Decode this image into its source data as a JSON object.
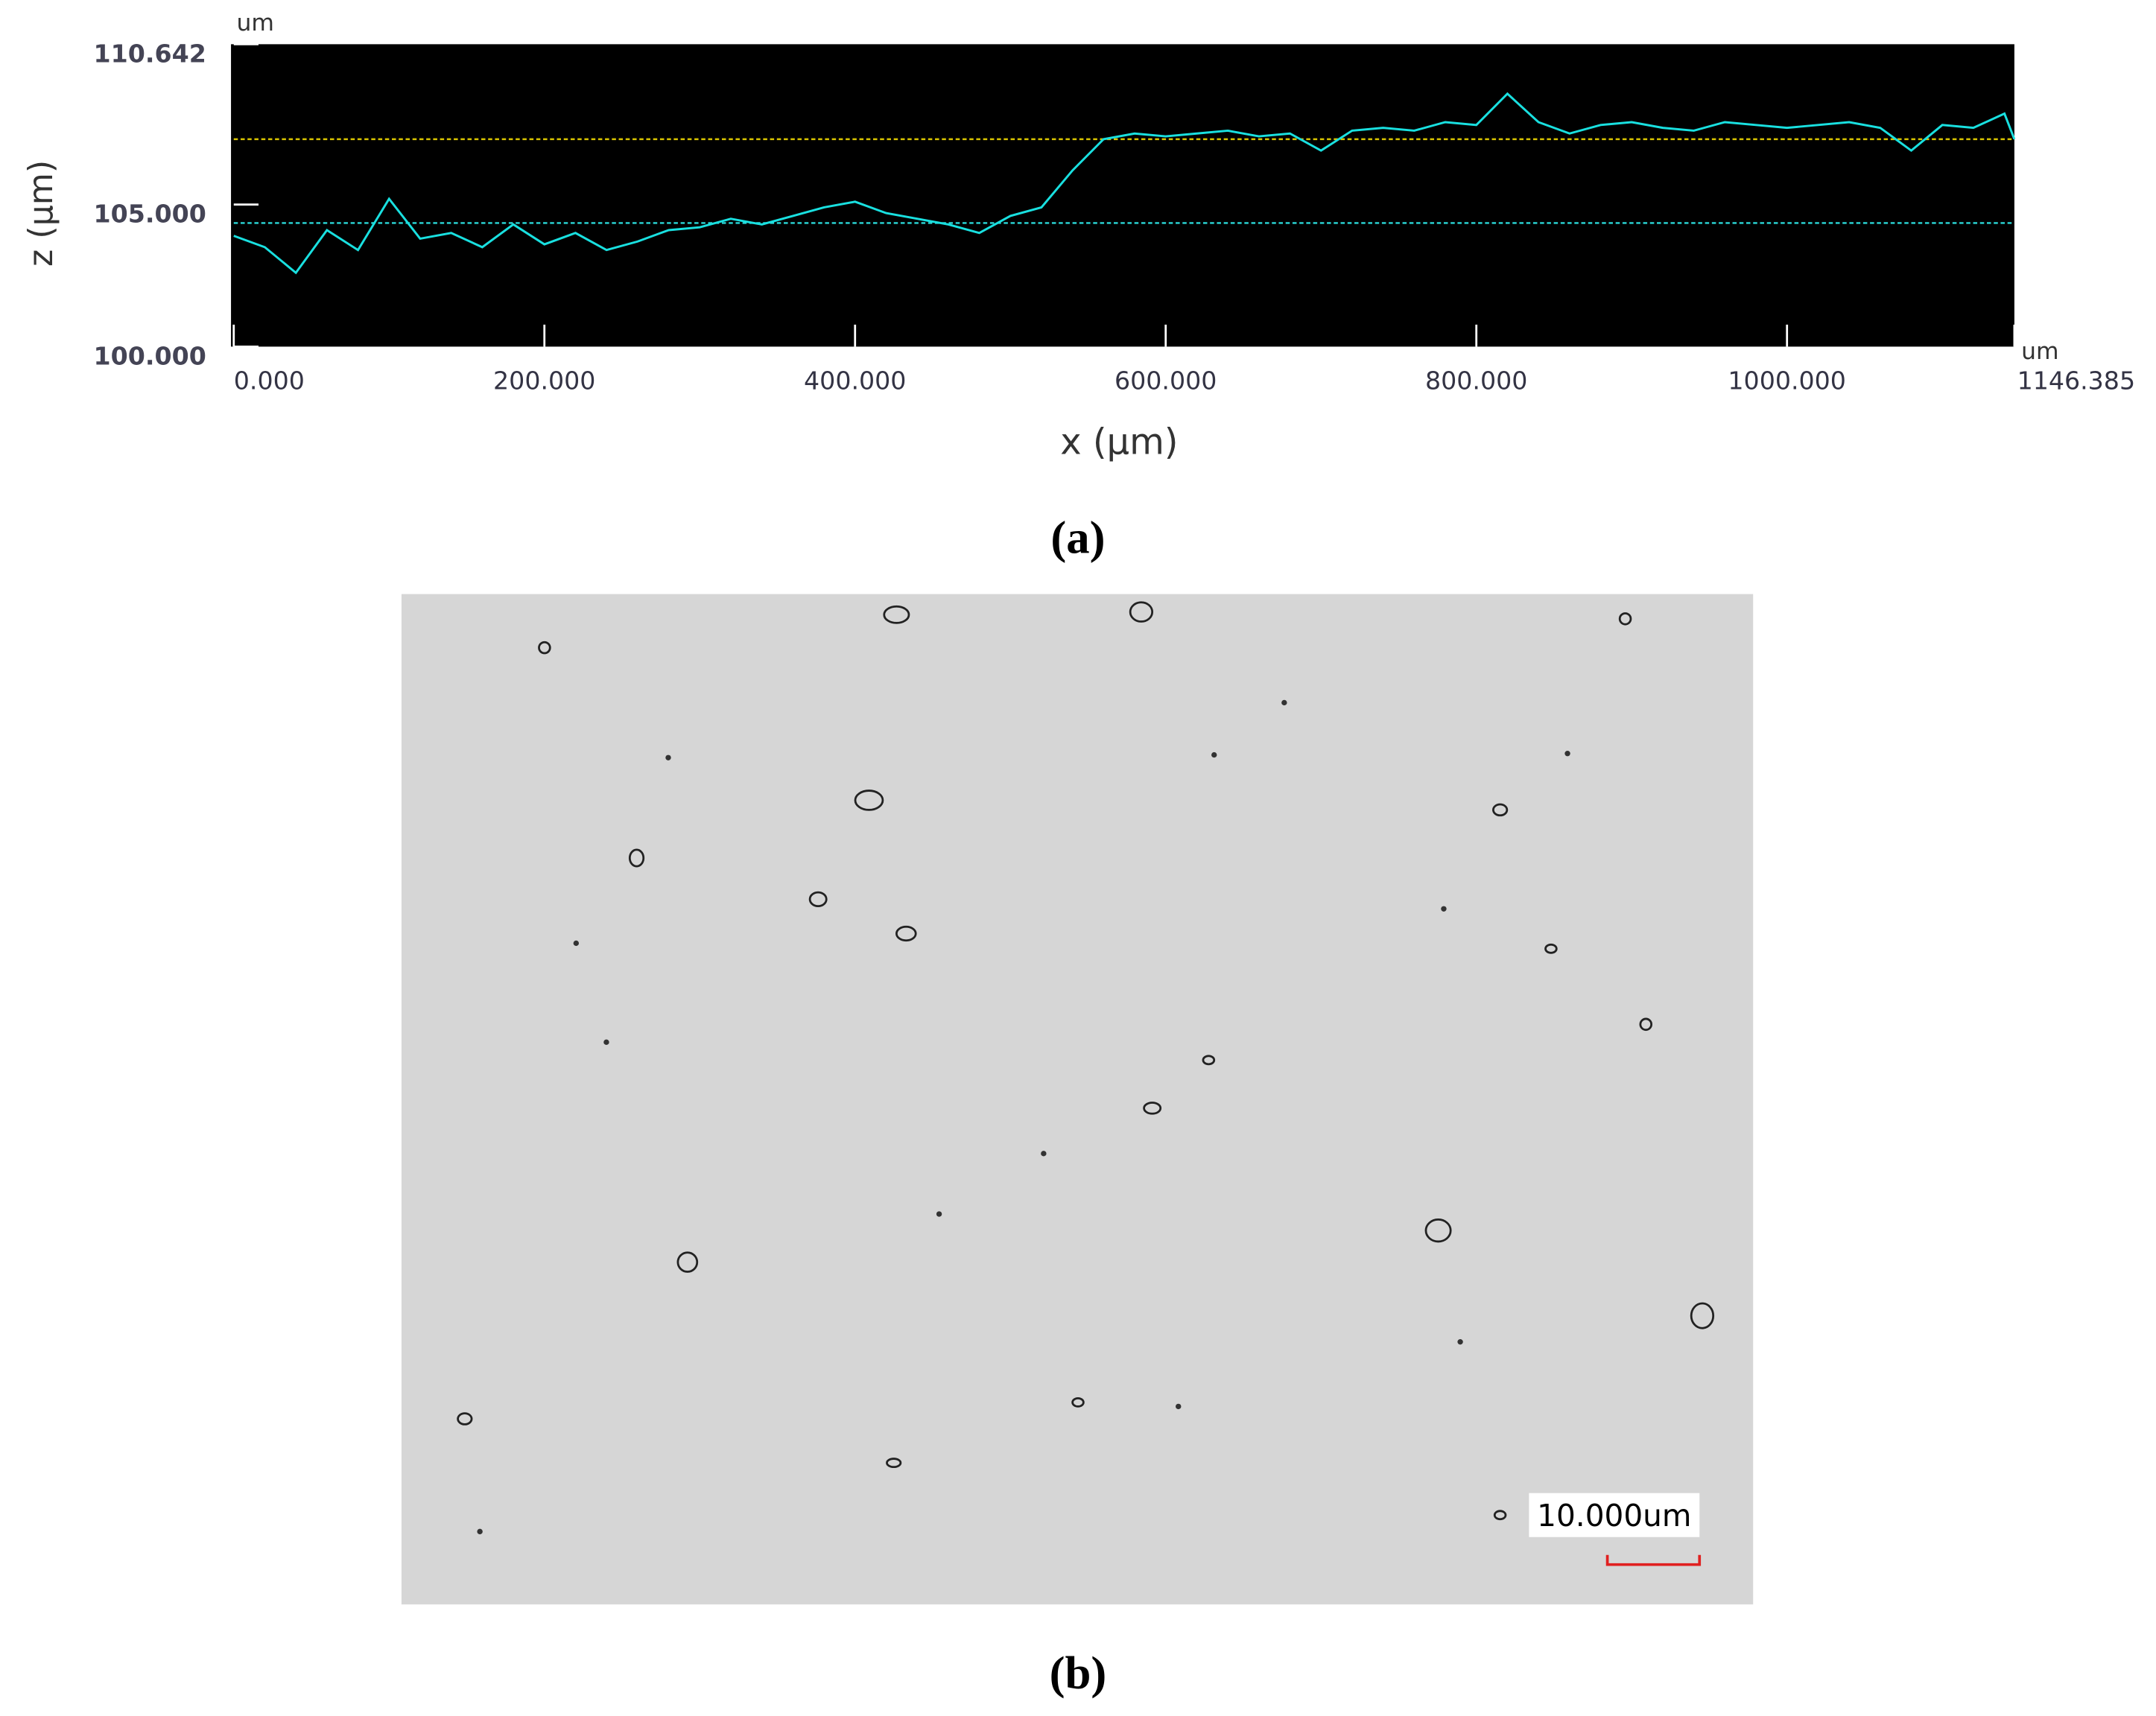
{
  "chart_data": {
    "type": "line",
    "x_label": "x (µm)",
    "y_label": "z (µm)",
    "x_unit": "um",
    "y_unit": "um",
    "x": [
      0,
      20,
      40,
      60,
      80,
      100,
      120,
      140,
      160,
      180,
      200,
      220,
      240,
      260,
      280,
      300,
      320,
      340,
      360,
      380,
      400,
      420,
      440,
      460,
      480,
      500,
      520,
      540,
      560,
      580,
      600,
      620,
      640,
      660,
      680,
      700,
      720,
      740,
      760,
      780,
      800,
      820,
      840,
      860,
      880,
      900,
      920,
      940,
      960,
      980,
      1000,
      1020,
      1040,
      1060,
      1080,
      1100,
      1120,
      1140,
      1146.385
    ],
    "series": [
      {
        "color": "#19e0e0",
        "values": [
          103.9,
          103.5,
          102.6,
          104.1,
          103.4,
          105.2,
          103.8,
          104.0,
          103.5,
          104.3,
          103.6,
          104.0,
          103.4,
          103.7,
          104.1,
          104.2,
          104.5,
          104.3,
          104.6,
          104.9,
          105.1,
          104.7,
          104.5,
          104.3,
          104.0,
          104.6,
          104.9,
          106.2,
          107.3,
          107.5,
          107.4,
          107.5,
          107.6,
          107.4,
          107.5,
          106.9,
          107.6,
          107.7,
          107.6,
          107.9,
          107.8,
          108.9,
          107.9,
          107.5,
          107.8,
          107.9,
          107.7,
          107.6,
          107.9,
          107.8,
          107.7,
          107.8,
          107.9,
          107.7,
          106.9,
          107.8,
          107.7,
          108.2,
          107.3
        ]
      }
    ],
    "reference_lines": [
      {
        "value": 104.35,
        "color": "#2ad8d8"
      },
      {
        "value": 107.3,
        "color": "#d8c400"
      }
    ],
    "xlim": [
      0,
      1146.385
    ],
    "ylim": [
      100,
      110.642
    ],
    "xticks": [
      {
        "value": 0,
        "label": "0.000"
      },
      {
        "value": 200,
        "label": "200.000"
      },
      {
        "value": 400,
        "label": "400.000"
      },
      {
        "value": 600,
        "label": "600.000"
      },
      {
        "value": 800,
        "label": "800.000"
      },
      {
        "value": 1000,
        "label": "1000.000"
      },
      {
        "value": 1146.385,
        "label": "1146.385"
      }
    ],
    "yticks": [
      {
        "value": 100,
        "label": "100.000"
      },
      {
        "value": 105,
        "label": "105.000"
      },
      {
        "value": 110.642,
        "label": "110.642"
      }
    ]
  },
  "figure": {
    "panel_a_label": "(a)",
    "panel_b_label": "(b)",
    "scale_bar_label": "10.000um"
  }
}
